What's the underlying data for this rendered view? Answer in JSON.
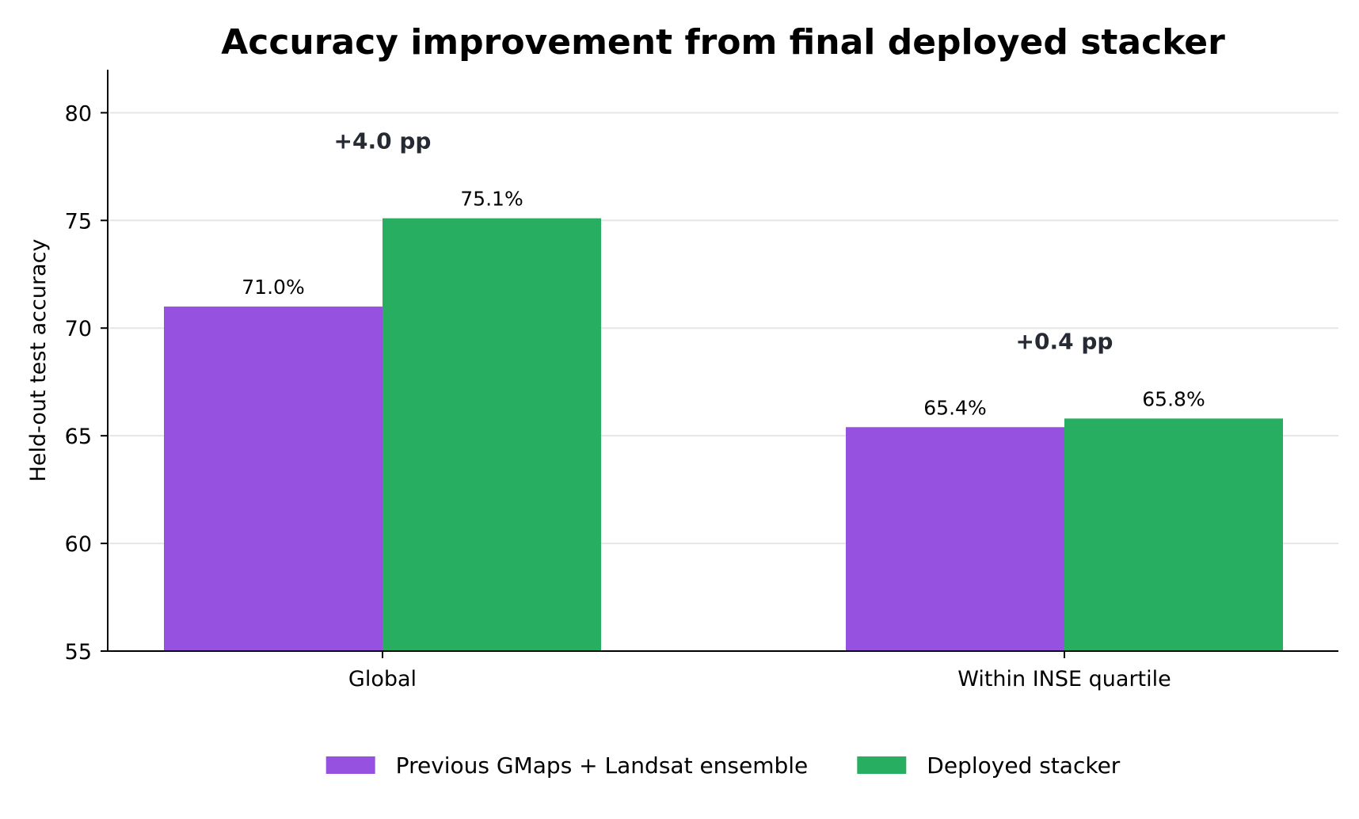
{
  "chart_data": {
    "type": "bar",
    "title": "Accuracy improvement from final deployed stacker",
    "xlabel": "",
    "ylabel": "Held-out test accuracy",
    "categories": [
      "Global",
      "Within INSE quartile"
    ],
    "ylim": [
      55,
      82
    ],
    "yticks": [
      55,
      60,
      65,
      70,
      75,
      80
    ],
    "grid": true,
    "legend_position": "bottom",
    "series": [
      {
        "name": "Previous GMaps + Landsat ensemble",
        "color": "#9751e0",
        "values": [
          71.0,
          65.4
        ],
        "labels": [
          "71.0%",
          "65.4%"
        ]
      },
      {
        "name": "Deployed stacker",
        "color": "#28ae61",
        "values": [
          75.1,
          65.8
        ],
        "labels": [
          "75.1%",
          "65.8%"
        ]
      }
    ],
    "annotations": [
      {
        "category": "Global",
        "text": "+4.0 pp",
        "y": 78.7
      },
      {
        "category": "Within INSE quartile",
        "text": "+0.4 pp",
        "y": 69.4
      }
    ]
  }
}
